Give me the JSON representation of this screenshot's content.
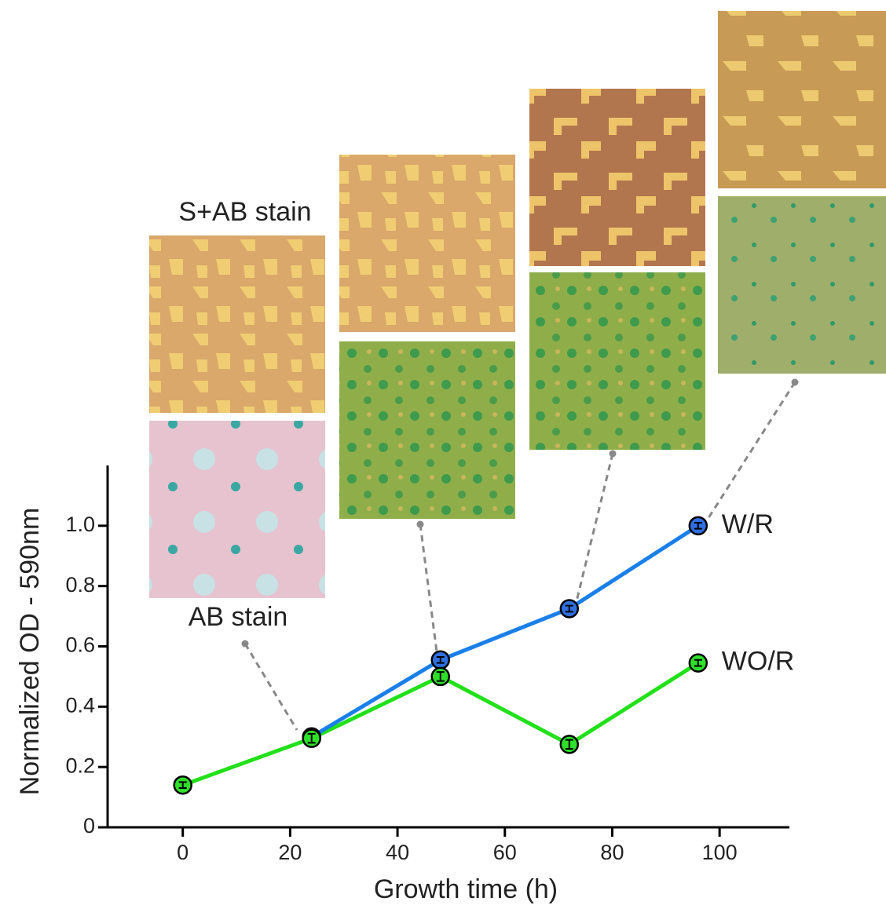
{
  "chart_data": {
    "type": "line",
    "xlabel": "Growth time (h)",
    "ylabel": "Normalized OD - 590nm",
    "xlim": [
      -14,
      113
    ],
    "xticks": [
      0,
      20,
      40,
      60,
      80,
      100
    ],
    "ylim": [
      0,
      1.2
    ],
    "yticks": [
      0,
      0.2,
      0.4,
      0.6,
      0.8,
      {
        "value": 1,
        "label": "1.0"
      }
    ],
    "series": [
      {
        "name": "W/R",
        "color": "#1a7fe8",
        "marker_color": "#2f6fe0",
        "x": [
          24,
          48,
          72,
          96
        ],
        "values": [
          0.3,
          0.555,
          0.725,
          1.0
        ],
        "errors": [
          0.01,
          0.01,
          0.01,
          0.01
        ]
      },
      {
        "name": "WO/R",
        "color": "#22e01a",
        "marker_color": "#2ee02a",
        "x": [
          0,
          24,
          48,
          72,
          96
        ],
        "values": [
          0.14,
          0.295,
          0.5,
          0.275,
          0.545
        ],
        "errors": [
          0.01,
          0.015,
          0.015,
          0.015,
          0.01
        ]
      }
    ],
    "annotations": [
      "S+AB stain",
      "AB stain"
    ]
  }
}
